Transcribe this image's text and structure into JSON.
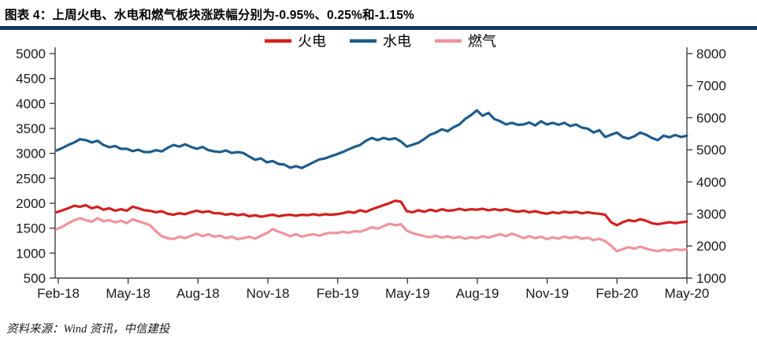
{
  "page": {
    "background": "#ffffff",
    "accent_bar_color": "#17375D"
  },
  "header": {
    "title": "图表 4：上周火电、水电和燃气板块涨跌幅分别为-0.95%、0.25%和-1.15%"
  },
  "footer": {
    "source": "资料来源：Wind 资讯，中信建投"
  },
  "chart_data": {
    "type": "line",
    "title": "",
    "grid": false,
    "legend_position": "top-center",
    "x_tick_labels": [
      "Feb-18",
      "May-18",
      "Aug-18",
      "Nov-18",
      "Feb-19",
      "May-19",
      "Aug-19",
      "Nov-19",
      "Feb-20",
      "May-20"
    ],
    "left_axis": {
      "min": 500,
      "max": 5000,
      "step": 500,
      "tick_labels": [
        "5000",
        "4500",
        "4000",
        "3500",
        "3000",
        "2500",
        "2000",
        "1500",
        "1000",
        "500"
      ]
    },
    "right_axis": {
      "min": 1000,
      "max": 8000,
      "step": 1000,
      "tick_labels": [
        "8000",
        "7000",
        "6000",
        "5000",
        "4000",
        "3000",
        "2000",
        "1000"
      ]
    },
    "axis_color": "#404040",
    "text_color": "#1a1a1a",
    "series": [
      {
        "name": "火电",
        "color": "#D2201F",
        "axis": "left",
        "values": [
          1820,
          1860,
          1900,
          1950,
          1930,
          1960,
          1900,
          1930,
          1870,
          1900,
          1850,
          1880,
          1850,
          1930,
          1900,
          1860,
          1850,
          1820,
          1840,
          1790,
          1770,
          1800,
          1780,
          1820,
          1850,
          1820,
          1840,
          1800,
          1800,
          1770,
          1790,
          1760,
          1780,
          1740,
          1760,
          1730,
          1750,
          1770,
          1740,
          1760,
          1770,
          1750,
          1770,
          1760,
          1780,
          1760,
          1780,
          1770,
          1780,
          1800,
          1830,
          1810,
          1860,
          1830,
          1880,
          1920,
          1960,
          2000,
          2050,
          2030,
          1840,
          1820,
          1860,
          1830,
          1870,
          1840,
          1880,
          1850,
          1860,
          1890,
          1860,
          1880,
          1870,
          1890,
          1860,
          1880,
          1860,
          1880,
          1850,
          1830,
          1850,
          1820,
          1840,
          1810,
          1790,
          1820,
          1800,
          1830,
          1810,
          1830,
          1800,
          1820,
          1800,
          1790,
          1770,
          1620,
          1560,
          1620,
          1660,
          1640,
          1680,
          1650,
          1600,
          1580,
          1600,
          1620,
          1600,
          1620,
          1630
        ]
      },
      {
        "name": "水电",
        "color": "#1E5C8C",
        "axis": "right",
        "values": [
          4980,
          5060,
          5150,
          5230,
          5330,
          5300,
          5230,
          5280,
          5150,
          5080,
          5120,
          5030,
          5030,
          4960,
          5000,
          4930,
          4930,
          4990,
          4950,
          5060,
          5150,
          5100,
          5170,
          5090,
          5030,
          5090,
          4990,
          4950,
          4930,
          4980,
          4900,
          4930,
          4900,
          4790,
          4690,
          4730,
          4610,
          4650,
          4560,
          4540,
          4440,
          4490,
          4430,
          4520,
          4610,
          4700,
          4730,
          4800,
          4860,
          4930,
          5010,
          5090,
          5150,
          5280,
          5370,
          5300,
          5370,
          5320,
          5360,
          5260,
          5100,
          5160,
          5220,
          5340,
          5470,
          5540,
          5640,
          5580,
          5700,
          5790,
          5960,
          6080,
          6230,
          6060,
          6150,
          5960,
          5890,
          5790,
          5840,
          5780,
          5790,
          5850,
          5760,
          5890,
          5790,
          5840,
          5780,
          5840,
          5740,
          5790,
          5690,
          5660,
          5540,
          5610,
          5400,
          5470,
          5540,
          5400,
          5350,
          5420,
          5540,
          5470,
          5370,
          5300,
          5440,
          5390,
          5460,
          5400,
          5440
        ]
      },
      {
        "name": "燃气",
        "color": "#F0939B",
        "axis": "left",
        "values": [
          1480,
          1530,
          1600,
          1660,
          1700,
          1660,
          1630,
          1700,
          1640,
          1660,
          1620,
          1650,
          1600,
          1680,
          1640,
          1600,
          1560,
          1440,
          1340,
          1300,
          1280,
          1330,
          1300,
          1350,
          1390,
          1340,
          1380,
          1330,
          1350,
          1300,
          1330,
          1280,
          1300,
          1330,
          1290,
          1350,
          1400,
          1480,
          1430,
          1390,
          1340,
          1380,
          1330,
          1360,
          1380,
          1350,
          1390,
          1410,
          1400,
          1430,
          1410,
          1440,
          1430,
          1470,
          1520,
          1490,
          1540,
          1590,
          1560,
          1580,
          1450,
          1400,
          1370,
          1340,
          1320,
          1350,
          1310,
          1340,
          1300,
          1330,
          1290,
          1320,
          1300,
          1340,
          1310,
          1350,
          1380,
          1340,
          1390,
          1350,
          1300,
          1340,
          1300,
          1330,
          1280,
          1320,
          1290,
          1330,
          1300,
          1330,
          1290,
          1310,
          1260,
          1290,
          1240,
          1150,
          1040,
          1080,
          1120,
          1090,
          1130,
          1090,
          1060,
          1040,
          1070,
          1050,
          1080,
          1060,
          1080
        ]
      }
    ]
  }
}
